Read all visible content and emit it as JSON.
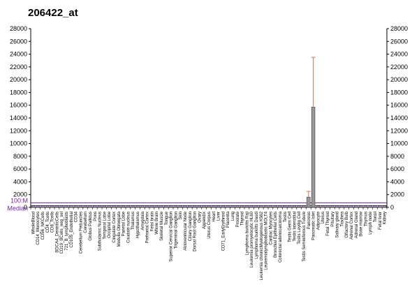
{
  "chart_data": {
    "type": "bar",
    "title": "206422_at",
    "xlabel": "",
    "ylabel": "",
    "ylim": [
      0,
      28000
    ],
    "yticks": [
      0,
      2000,
      4000,
      6000,
      8000,
      10000,
      12000,
      14000,
      16000,
      18000,
      20000,
      22000,
      24000,
      26000,
      28000
    ],
    "grid": false,
    "right_axis": true,
    "reference_lines": [
      {
        "label": "100:M",
        "value": 700,
        "color": "#7a1fa2"
      },
      {
        "label": "Median",
        "value": 280,
        "color": "#7a1fa2"
      }
    ],
    "bar_color": "#999999",
    "error_color": "#e07050",
    "categories": [
      "WholeBlood",
      "CD14_Monocytes",
      "CD56_NKCells",
      "CD4_Tcells",
      "CD8_Tcells",
      "BDCA4_DentriticCells",
      "CD19_BCells_neg_sel",
      "721_B_lymphoblasts",
      "CD105_Endothelial",
      "CD34",
      "Cerebellum Peduncles",
      "Cerebellum",
      "Globus Pallidus",
      "Pons",
      "Subthalamic Nucleus",
      "Temporal Lobe",
      "Occipital Lobe",
      "Cingulate Cortex",
      "Medulla Oblongata",
      "Parietal Lobe",
      "Caudate nucleus",
      "Thalamus",
      "Hypothalamus",
      "Amygdala",
      "Prefrontal Cortex",
      "Fetal brain",
      "Whole Brain",
      "Skeletal Muscle",
      "Tongue",
      "Superior Cervical Ganglion",
      "Trigeminal Ganglion",
      "Skin",
      "Atrioventricular Node",
      "Ciliary Ganglion",
      "Dorsal Root Ganglion",
      "Ovary",
      "Appendix",
      "Uterus Corpus",
      "Heart",
      "Liver",
      "CD71_EarlyErythroid",
      "Placenta",
      "Lung",
      "Prostate",
      "Thyroid",
      "Lymphoma burkitts Raji",
      "Leukemia promyelocytic HL60",
      "Lymphoma burkitts Daudi",
      "Leukemia chronicMyelogenous K562",
      "Leukemialymphoblastic MOLT4",
      "Cardiac Myocytes",
      "Bronchial Epithelial Cells",
      "Colorectal adenocarcinoma",
      "Testis",
      "Testis Germ Cell",
      "Testis Interstitial",
      "Testis Leydig Cell",
      "Testis Seminiferous Tubule",
      "Pancreas",
      "Pancreatic Islet",
      "Adipocyte",
      "Uterus",
      "Fetal Thyroid",
      "Pituitary",
      "Salivary gland",
      "Trachea",
      "Olfactory Bulb",
      "Adrenal Cortex",
      "Adrenal Gland",
      "Bone marrow",
      "Thymus",
      "Lymph node",
      "Tonsil",
      "Fetal liver",
      "Kidney"
    ],
    "values": [
      250,
      250,
      250,
      250,
      250,
      250,
      250,
      250,
      250,
      250,
      250,
      250,
      250,
      250,
      250,
      250,
      250,
      250,
      250,
      250,
      250,
      250,
      250,
      250,
      250,
      250,
      250,
      250,
      250,
      250,
      250,
      250,
      250,
      250,
      250,
      250,
      250,
      250,
      250,
      250,
      250,
      250,
      250,
      250,
      250,
      250,
      250,
      250,
      250,
      250,
      250,
      250,
      250,
      250,
      250,
      250,
      250,
      250,
      1600,
      15700,
      250,
      250,
      250,
      250,
      250,
      250,
      250,
      250,
      250,
      250,
      250,
      250,
      250,
      250,
      250
    ],
    "errors": [
      {
        "index": 58,
        "high": 2500
      },
      {
        "index": 59,
        "high": 23500
      }
    ]
  }
}
